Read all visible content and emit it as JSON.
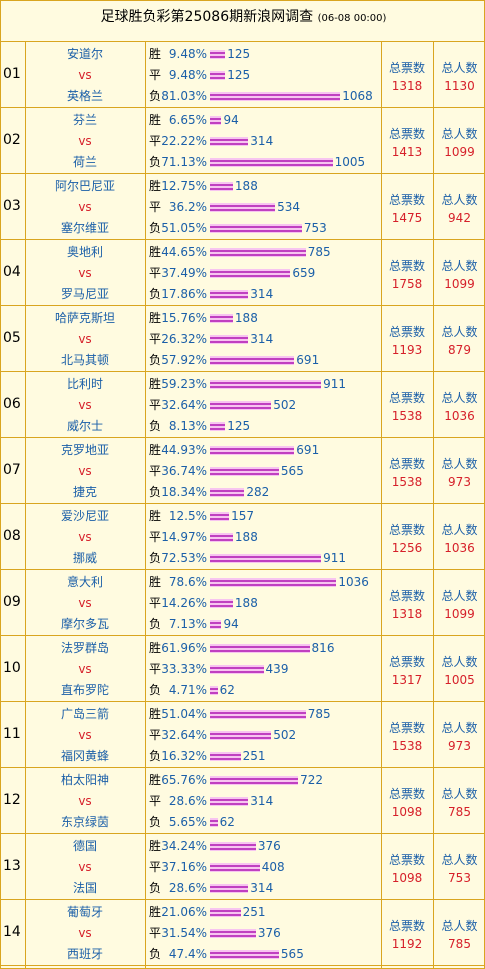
{
  "header": {
    "title": "足球胜负彩第25086期新浪网调查",
    "time": "(06-08 00:00)"
  },
  "labels": {
    "outcomes": [
      "胜",
      "平",
      "负"
    ],
    "vs": "vs",
    "votes": "总票数",
    "people": "总人数"
  },
  "rows": [
    {
      "no": "01",
      "home": "安道尔",
      "away": "英格兰",
      "outcomes": [
        {
          "pct": "9.48%",
          "count": 125
        },
        {
          "pct": "9.48%",
          "count": 125
        },
        {
          "pct": "81.03%",
          "count": 1068
        }
      ],
      "votes": 1318,
      "people": 1130
    },
    {
      "no": "02",
      "home": "芬兰",
      "away": "荷兰",
      "outcomes": [
        {
          "pct": "6.65%",
          "count": 94
        },
        {
          "pct": "22.22%",
          "count": 314
        },
        {
          "pct": "71.13%",
          "count": 1005
        }
      ],
      "votes": 1413,
      "people": 1099
    },
    {
      "no": "03",
      "home": "阿尔巴尼亚",
      "away": "塞尔维亚",
      "outcomes": [
        {
          "pct": "12.75%",
          "count": 188
        },
        {
          "pct": "36.2%",
          "count": 534
        },
        {
          "pct": "51.05%",
          "count": 753
        }
      ],
      "votes": 1475,
      "people": 942
    },
    {
      "no": "04",
      "home": "奥地利",
      "away": "罗马尼亚",
      "outcomes": [
        {
          "pct": "44.65%",
          "count": 785
        },
        {
          "pct": "37.49%",
          "count": 659
        },
        {
          "pct": "17.86%",
          "count": 314
        }
      ],
      "votes": 1758,
      "people": 1099
    },
    {
      "no": "05",
      "home": "哈萨克斯坦",
      "away": "北马其顿",
      "outcomes": [
        {
          "pct": "15.76%",
          "count": 188
        },
        {
          "pct": "26.32%",
          "count": 314
        },
        {
          "pct": "57.92%",
          "count": 691
        }
      ],
      "votes": 1193,
      "people": 879
    },
    {
      "no": "06",
      "home": "比利时",
      "away": "威尔士",
      "outcomes": [
        {
          "pct": "59.23%",
          "count": 911
        },
        {
          "pct": "32.64%",
          "count": 502
        },
        {
          "pct": "8.13%",
          "count": 125
        }
      ],
      "votes": 1538,
      "people": 1036
    },
    {
      "no": "07",
      "home": "克罗地亚",
      "away": "捷克",
      "outcomes": [
        {
          "pct": "44.93%",
          "count": 691
        },
        {
          "pct": "36.74%",
          "count": 565
        },
        {
          "pct": "18.34%",
          "count": 282
        }
      ],
      "votes": 1538,
      "people": 973
    },
    {
      "no": "08",
      "home": "爱沙尼亚",
      "away": "挪威",
      "outcomes": [
        {
          "pct": "12.5%",
          "count": 157
        },
        {
          "pct": "14.97%",
          "count": 188
        },
        {
          "pct": "72.53%",
          "count": 911
        }
      ],
      "votes": 1256,
      "people": 1036
    },
    {
      "no": "09",
      "home": "意大利",
      "away": "摩尔多瓦",
      "outcomes": [
        {
          "pct": "78.6%",
          "count": 1036
        },
        {
          "pct": "14.26%",
          "count": 188
        },
        {
          "pct": "7.13%",
          "count": 94
        }
      ],
      "votes": 1318,
      "people": 1099
    },
    {
      "no": "10",
      "home": "法罗群岛",
      "away": "直布罗陀",
      "outcomes": [
        {
          "pct": "61.96%",
          "count": 816
        },
        {
          "pct": "33.33%",
          "count": 439
        },
        {
          "pct": "4.71%",
          "count": 62
        }
      ],
      "votes": 1317,
      "people": 1005
    },
    {
      "no": "11",
      "home": "广岛三箭",
      "away": "福冈黄蜂",
      "outcomes": [
        {
          "pct": "51.04%",
          "count": 785
        },
        {
          "pct": "32.64%",
          "count": 502
        },
        {
          "pct": "16.32%",
          "count": 251
        }
      ],
      "votes": 1538,
      "people": 973
    },
    {
      "no": "12",
      "home": "柏太阳神",
      "away": "东京绿茵",
      "outcomes": [
        {
          "pct": "65.76%",
          "count": 722
        },
        {
          "pct": "28.6%",
          "count": 314
        },
        {
          "pct": "5.65%",
          "count": 62
        }
      ],
      "votes": 1098,
      "people": 785
    },
    {
      "no": "13",
      "home": "德国",
      "away": "法国",
      "outcomes": [
        {
          "pct": "34.24%",
          "count": 376
        },
        {
          "pct": "37.16%",
          "count": 408
        },
        {
          "pct": "28.6%",
          "count": 314
        }
      ],
      "votes": 1098,
      "people": 753
    },
    {
      "no": "14",
      "home": "葡萄牙",
      "away": "西班牙",
      "outcomes": [
        {
          "pct": "21.06%",
          "count": 251
        },
        {
          "pct": "31.54%",
          "count": 376
        },
        {
          "pct": "47.4%",
          "count": 565
        }
      ],
      "votes": 1192,
      "people": 785
    }
  ]
}
